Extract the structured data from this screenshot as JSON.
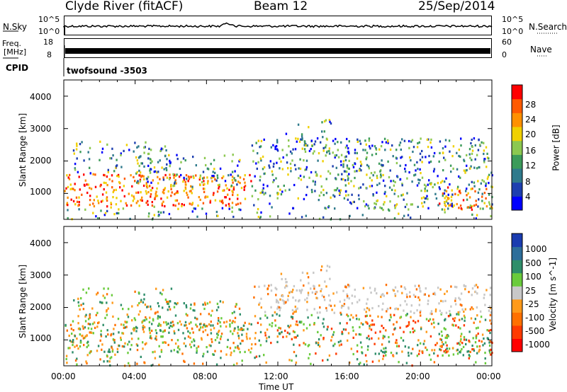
{
  "header": {
    "station": "Clyde River (fitACF)",
    "beam": "Beam 12",
    "date": "25/Sep/2014"
  },
  "top_panels": {
    "nsky_label": "N.Sky",
    "nsky_ticks": [
      "10^5",
      "10^0"
    ],
    "nsearch_label": "N.Search",
    "nsearch_ticks": [
      "10^5",
      "10^0"
    ],
    "freq_label_line1": "Freq.",
    "freq_label_line2": "[MHz]",
    "freq_ticks": [
      "18",
      "8"
    ],
    "nave_label": "Nave",
    "nave_ticks": [
      "60",
      "0"
    ],
    "cpid_label": "CPID",
    "cpid_value": "twofsound -3503"
  },
  "colors": {
    "power_scale": [
      "#0000ff",
      "#1d3fb0",
      "#2f7a8c",
      "#3c9b5a",
      "#8cc850",
      "#f0d000",
      "#ff9000",
      "#ff5a00",
      "#ff0000"
    ],
    "velocity_scale": [
      "#1a3cb0",
      "#2e6e9a",
      "#2f8e6a",
      "#6acb3c",
      "#c8c8c8",
      "#ff9a1a",
      "#ff7000",
      "#ff3a00",
      "#ff0000"
    ]
  },
  "chart_data": [
    {
      "type": "heatmap",
      "name": "power",
      "ylabel": "Slant Range [km]",
      "ylim": [
        200,
        4500
      ],
      "yticks": [
        "1000",
        "2000",
        "3000",
        "4000"
      ],
      "xlim": [
        "00:00",
        "24:00"
      ],
      "colorbar": {
        "label": "Power [dB]",
        "ticks": [
          "4",
          "8",
          "12",
          "16",
          "20",
          "24",
          "28"
        ],
        "range": [
          0,
          30
        ]
      },
      "description_bands": [
        {
          "from": "00:00",
          "to": "10:30",
          "range_km": [
            600,
            1600
          ],
          "level": "high"
        },
        {
          "from": "10:30",
          "to": "24:00",
          "range_km": [
            1200,
            2600
          ],
          "level": "medium"
        },
        {
          "from": "21:00",
          "to": "24:00",
          "range_km": [
            500,
            1200
          ],
          "level": "high"
        }
      ]
    },
    {
      "type": "heatmap",
      "name": "velocity",
      "ylabel": "Slant Range [km]",
      "ylim": [
        200,
        4500
      ],
      "yticks": [
        "1000",
        "2000",
        "3000",
        "4000"
      ],
      "xticks": [
        "00:00",
        "04:00",
        "08:00",
        "12:00",
        "16:00",
        "20:00",
        "00:00"
      ],
      "xlabel": "Time UT",
      "colorbar": {
        "label": "Velocity [m s^-1]",
        "ticks": [
          "1000",
          "500",
          "100",
          "25",
          "-25",
          "-100",
          "-500",
          "-1000"
        ]
      }
    }
  ]
}
